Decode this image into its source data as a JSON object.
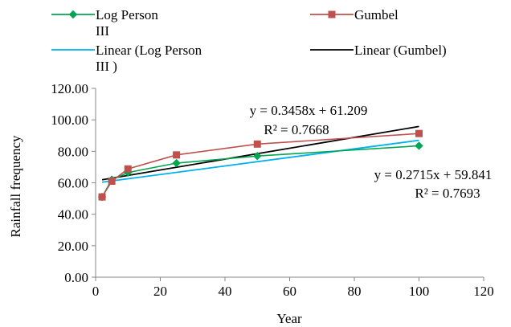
{
  "chart_data": {
    "type": "line",
    "xlabel": "Year",
    "ylabel": "Rainfall frequency",
    "xlim": [
      0,
      120
    ],
    "ylim": [
      0,
      120
    ],
    "x_ticks": [
      0,
      20,
      40,
      60,
      80,
      100,
      120
    ],
    "y_ticks": [
      "0.00",
      "20.00",
      "40.00",
      "60.00",
      "80.00",
      "100.00",
      "120.00"
    ],
    "grid": false,
    "legend_position": "top",
    "series": [
      {
        "name": "Log Person III",
        "legend_lines": [
          "Log Person",
          "III"
        ],
        "color": "#00a651",
        "marker": "diamond",
        "x": [
          2,
          5,
          10,
          25,
          50,
          100
        ],
        "y": [
          51.0,
          62.0,
          66.5,
          72.5,
          77.0,
          83.5
        ]
      },
      {
        "name": "Gumbel",
        "legend_lines": [
          "Gumbel"
        ],
        "color": "#c0504d",
        "marker": "square",
        "x": [
          2,
          5,
          10,
          25,
          50,
          100
        ],
        "y": [
          51.0,
          61.0,
          68.8,
          77.7,
          84.6,
          91.3
        ]
      },
      {
        "name": "Linear (Log Person III )",
        "legend_lines": [
          "Linear (Log Person",
          "III )"
        ],
        "color": "#00b0f0",
        "trendline": true,
        "x": [
          2,
          100
        ],
        "y": [
          60.38,
          86.99
        ]
      },
      {
        "name": "Linear (Gumbel)",
        "legend_lines": [
          "Linear (Gumbel)"
        ],
        "color": "#000000",
        "trendline": true,
        "x": [
          2,
          100
        ],
        "y": [
          61.9,
          95.79
        ]
      }
    ],
    "annotations": [
      {
        "equation": "y = 0.3458x + 61.209",
        "r2": "R² = 0.7668"
      },
      {
        "equation": "y = 0.2715x + 59.841",
        "r2": "R² = 0.7693"
      }
    ]
  }
}
